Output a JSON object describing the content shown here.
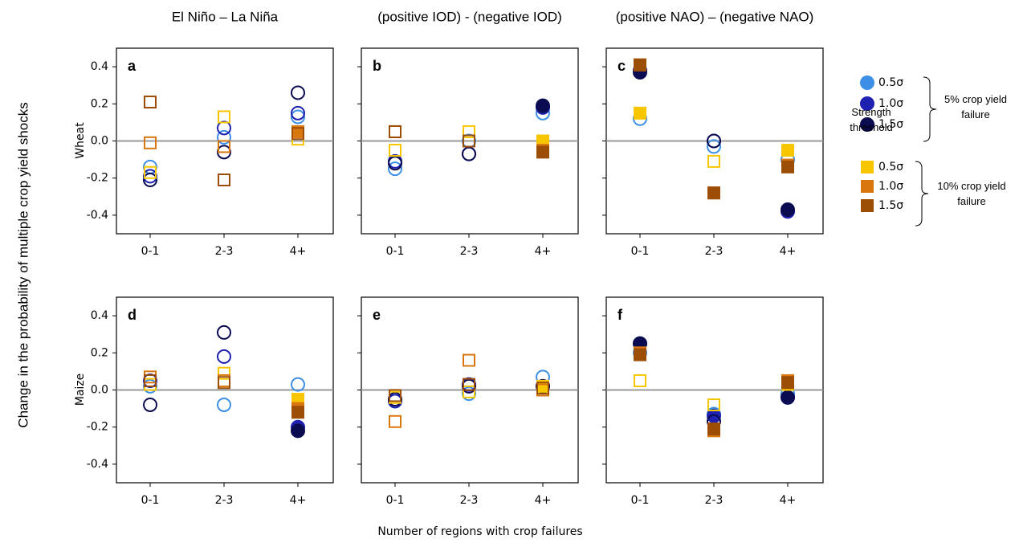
{
  "figure": {
    "column_titles": [
      "El Niño – La Niña",
      "(positive IOD) - (negative IOD)",
      "(positive NAO) – (negative NAO)"
    ],
    "row_labels": [
      "Wheat",
      "Maize"
    ],
    "ylabel": "Change in the probability of multiple crop yield shocks",
    "xlabel": "Number of regions with crop failures",
    "legend": {
      "title": "Strength threshold",
      "groups": [
        "5% crop yield failure",
        "10% crop yield failure"
      ]
    }
  },
  "chart_data": [
    {
      "type": "scatter",
      "title": "a",
      "categories": [
        "0-1",
        "2-3",
        "4+"
      ],
      "ylim": [
        -0.5,
        0.5
      ],
      "yticks": [
        -0.4,
        -0.2,
        {
          "value": 0,
          "label": "0.0"
        },
        0.2,
        0.4
      ],
      "zero_line": true,
      "series": [
        {
          "name": "0.5σ",
          "color": "#3d8fe6",
          "marker": "circle",
          "values": [
            -0.14,
            0.02,
            0.13
          ],
          "filled": [
            false,
            false,
            false
          ]
        },
        {
          "name": "1.0σ",
          "color": "#1f22b0",
          "marker": "circle",
          "values": [
            -0.19,
            0.07,
            0.15
          ],
          "filled": [
            false,
            false,
            false
          ]
        },
        {
          "name": "1.5σ",
          "color": "#0b0b52",
          "marker": "circle",
          "values": [
            -0.21,
            -0.06,
            0.26
          ],
          "filled": [
            false,
            false,
            false
          ]
        },
        {
          "name": "0.5σ",
          "color": "#f7c600",
          "marker": "square",
          "values": [
            -0.17,
            0.13,
            0.01
          ],
          "filled": [
            false,
            false,
            false
          ]
        },
        {
          "name": "1.0σ",
          "color": "#d9770f",
          "marker": "square",
          "values": [
            -0.01,
            -0.03,
            0.05
          ],
          "filled": [
            false,
            false,
            true
          ]
        },
        {
          "name": "1.5σ",
          "color": "#9c4d06",
          "marker": "square",
          "values": [
            0.21,
            -0.21,
            0.04
          ],
          "filled": [
            false,
            false,
            false
          ]
        }
      ]
    },
    {
      "type": "scatter",
      "title": "b",
      "categories": [
        "0-1",
        "2-3",
        "4+"
      ],
      "ylim": [
        -0.5,
        0.5
      ],
      "yticks": [
        -0.4,
        -0.2,
        {
          "value": 0,
          "label": "0.0"
        },
        0.2,
        0.4
      ],
      "zero_line": true,
      "series": [
        {
          "name": "0.5σ",
          "color": "#3d8fe6",
          "marker": "circle",
          "values": [
            -0.15,
            0.0,
            0.15
          ],
          "filled": [
            false,
            false,
            false
          ]
        },
        {
          "name": "1.0σ",
          "color": "#1f22b0",
          "marker": "circle",
          "values": [
            -0.11,
            -0.07,
            0.18
          ],
          "filled": [
            false,
            false,
            true
          ]
        },
        {
          "name": "1.5σ",
          "color": "#0b0b52",
          "marker": "circle",
          "values": [
            -0.12,
            -0.07,
            0.19
          ],
          "filled": [
            false,
            false,
            true
          ]
        },
        {
          "name": "0.5σ",
          "color": "#f7c600",
          "marker": "square",
          "values": [
            -0.05,
            0.05,
            0.0
          ],
          "filled": [
            false,
            false,
            true
          ]
        },
        {
          "name": "1.0σ",
          "color": "#d9770f",
          "marker": "square",
          "values": [
            0.05,
            0.0,
            -0.05
          ],
          "filled": [
            false,
            false,
            true
          ]
        },
        {
          "name": "1.5σ",
          "color": "#9c4d06",
          "marker": "square",
          "values": [
            0.05,
            0.0,
            -0.06
          ],
          "filled": [
            false,
            false,
            true
          ]
        }
      ]
    },
    {
      "type": "scatter",
      "title": "c",
      "categories": [
        "0-1",
        "2-3",
        "4+"
      ],
      "ylim": [
        -0.5,
        0.5
      ],
      "yticks": [
        -0.4,
        -0.2,
        {
          "value": 0,
          "label": "0.0"
        },
        0.2,
        0.4
      ],
      "zero_line": true,
      "series": [
        {
          "name": "0.5σ",
          "color": "#3d8fe6",
          "marker": "circle",
          "values": [
            0.12,
            -0.03,
            -0.1
          ],
          "filled": [
            false,
            false,
            false
          ]
        },
        {
          "name": "1.0σ",
          "color": "#1f22b0",
          "marker": "circle",
          "values": [
            0.38,
            0.0,
            -0.38
          ],
          "filled": [
            true,
            false,
            true
          ]
        },
        {
          "name": "1.5σ",
          "color": "#0b0b52",
          "marker": "circle",
          "values": [
            0.37,
            0.0,
            -0.37
          ],
          "filled": [
            true,
            false,
            true
          ]
        },
        {
          "name": "0.5σ",
          "color": "#f7c600",
          "marker": "square",
          "values": [
            0.15,
            -0.11,
            -0.05
          ],
          "filled": [
            true,
            false,
            true
          ]
        },
        {
          "name": "1.0σ",
          "color": "#d9770f",
          "marker": "square",
          "values": [
            0.41,
            -0.28,
            -0.13
          ],
          "filled": [
            true,
            true,
            true
          ]
        },
        {
          "name": "1.5σ",
          "color": "#9c4d06",
          "marker": "square",
          "values": [
            0.41,
            -0.28,
            -0.14
          ],
          "filled": [
            true,
            true,
            true
          ]
        }
      ]
    },
    {
      "type": "scatter",
      "title": "d",
      "categories": [
        "0-1",
        "2-3",
        "4+"
      ],
      "ylim": [
        -0.5,
        0.5
      ],
      "yticks": [
        -0.4,
        -0.2,
        {
          "value": 0,
          "label": "0.0"
        },
        0.2,
        0.4
      ],
      "zero_line": true,
      "series": [
        {
          "name": "0.5σ",
          "color": "#3d8fe6",
          "marker": "circle",
          "values": [
            0.02,
            -0.08,
            0.03
          ],
          "filled": [
            false,
            false,
            false
          ]
        },
        {
          "name": "1.0σ",
          "color": "#1f22b0",
          "marker": "circle",
          "values": [
            0.05,
            0.18,
            -0.2
          ],
          "filled": [
            false,
            false,
            true
          ]
        },
        {
          "name": "1.5σ",
          "color": "#0b0b52",
          "marker": "circle",
          "values": [
            -0.08,
            0.31,
            -0.22
          ],
          "filled": [
            false,
            false,
            true
          ]
        },
        {
          "name": "0.5σ",
          "color": "#f7c600",
          "marker": "square",
          "values": [
            0.03,
            0.09,
            -0.05
          ],
          "filled": [
            false,
            false,
            true
          ]
        },
        {
          "name": "1.0σ",
          "color": "#d9770f",
          "marker": "square",
          "values": [
            0.07,
            0.05,
            -0.1
          ],
          "filled": [
            false,
            false,
            true
          ]
        },
        {
          "name": "1.5σ",
          "color": "#9c4d06",
          "marker": "square",
          "values": [
            0.05,
            0.04,
            -0.12
          ],
          "filled": [
            false,
            false,
            true
          ]
        }
      ]
    },
    {
      "type": "scatter",
      "title": "e",
      "categories": [
        "0-1",
        "2-3",
        "4+"
      ],
      "ylim": [
        -0.5,
        0.5
      ],
      "yticks": [
        -0.4,
        -0.2,
        {
          "value": 0,
          "label": "0.0"
        },
        0.2,
        0.4
      ],
      "zero_line": true,
      "series": [
        {
          "name": "0.5σ",
          "color": "#3d8fe6",
          "marker": "circle",
          "values": [
            -0.06,
            -0.02,
            0.07
          ],
          "filled": [
            false,
            false,
            false
          ]
        },
        {
          "name": "1.0σ",
          "color": "#1f22b0",
          "marker": "circle",
          "values": [
            -0.06,
            0.03,
            0.02
          ],
          "filled": [
            false,
            false,
            false
          ]
        },
        {
          "name": "1.5σ",
          "color": "#0b0b52",
          "marker": "circle",
          "values": [
            -0.05,
            0.02,
            0.02
          ],
          "filled": [
            false,
            false,
            true
          ]
        },
        {
          "name": "0.5σ",
          "color": "#f7c600",
          "marker": "square",
          "values": [
            -0.04,
            -0.01,
            0.02
          ],
          "filled": [
            false,
            false,
            true
          ]
        },
        {
          "name": "1.0σ",
          "color": "#d9770f",
          "marker": "square",
          "values": [
            -0.17,
            0.16,
            0.0
          ],
          "filled": [
            false,
            false,
            false
          ]
        },
        {
          "name": "1.5σ",
          "color": "#9c4d06",
          "marker": "square",
          "values": [
            -0.03,
            0.03,
            0.01
          ],
          "filled": [
            false,
            false,
            false
          ]
        }
      ]
    },
    {
      "type": "scatter",
      "title": "f",
      "categories": [
        "0-1",
        "2-3",
        "4+"
      ],
      "ylim": [
        -0.5,
        0.5
      ],
      "yticks": [
        -0.4,
        -0.2,
        {
          "value": 0,
          "label": "0.0"
        },
        0.2,
        0.4
      ],
      "zero_line": true,
      "series": [
        {
          "name": "0.5σ",
          "color": "#3d8fe6",
          "marker": "circle",
          "values": [
            0.2,
            -0.13,
            -0.02
          ],
          "filled": [
            false,
            true,
            false
          ]
        },
        {
          "name": "1.0σ",
          "color": "#1f22b0",
          "marker": "circle",
          "values": [
            0.25,
            -0.14,
            -0.04
          ],
          "filled": [
            true,
            true,
            true
          ]
        },
        {
          "name": "1.5σ",
          "color": "#0b0b52",
          "marker": "circle",
          "values": [
            0.25,
            -0.17,
            -0.04
          ],
          "filled": [
            true,
            false,
            true
          ]
        },
        {
          "name": "0.5σ",
          "color": "#f7c600",
          "marker": "square",
          "values": [
            0.05,
            -0.08,
            0.03
          ],
          "filled": [
            false,
            false,
            true
          ]
        },
        {
          "name": "1.0σ",
          "color": "#d9770f",
          "marker": "square",
          "values": [
            0.2,
            -0.22,
            0.05
          ],
          "filled": [
            true,
            true,
            true
          ]
        },
        {
          "name": "1.5σ",
          "color": "#9c4d06",
          "marker": "square",
          "values": [
            0.19,
            -0.21,
            0.04
          ],
          "filled": [
            true,
            true,
            true
          ]
        }
      ]
    }
  ]
}
